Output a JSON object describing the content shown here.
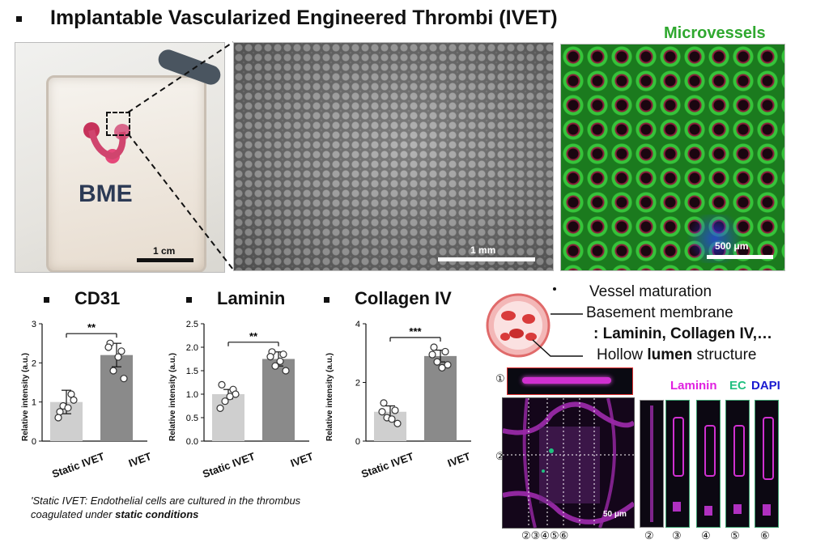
{
  "header": {
    "title": "Implantable Vascularized Engineered Thrombi (IVET)"
  },
  "photo_panel": {
    "logo_text": "BME",
    "scale_label": "1 cm"
  },
  "brightfield_panel": {
    "scale_label": "1 mm"
  },
  "fluor_panel": {
    "title": "Microvessels",
    "scale_label": "500 μm",
    "title_color": "#2fa82f"
  },
  "charts": [
    {
      "heading": "CD31",
      "ylabel": "Relative intensity (a.u.)",
      "sig": "**"
    },
    {
      "heading": "Laminin",
      "ylabel": "Relative intensity (a.u.)",
      "sig": "**"
    },
    {
      "heading": "Collagen IV",
      "ylabel": "Relative intensity (a.u.)",
      "sig": "***"
    }
  ],
  "chart_data": [
    {
      "type": "bar",
      "title": "CD31",
      "categories": [
        "Static IVET",
        "IVET"
      ],
      "values": [
        1.0,
        2.2
      ],
      "errors": [
        0.3,
        0.3
      ],
      "ylabel": "Relative intensity (a.u.)",
      "ylim": [
        0,
        3
      ],
      "yticks": [
        "0",
        "1",
        "2",
        "3"
      ],
      "significance": "**",
      "points": [
        [
          0.75,
          1.2,
          0.9,
          1.05,
          0.6,
          0.85
        ],
        [
          2.5,
          2.3,
          1.8,
          1.6,
          2.4,
          2.15
        ]
      ]
    },
    {
      "type": "bar",
      "title": "Laminin",
      "categories": [
        "Static IVET",
        "IVET"
      ],
      "values": [
        1.0,
        1.75
      ],
      "errors": [
        0.1,
        0.15
      ],
      "ylabel": "Relative intensity (a.u.)",
      "ylim": [
        0,
        2.5
      ],
      "yticks": [
        "0.0",
        "0.5",
        "1.0",
        "1.5",
        "2.0",
        "2.5"
      ],
      "significance": "**",
      "points": [
        [
          1.2,
          1.1,
          0.85,
          1.0,
          0.7,
          0.95
        ],
        [
          1.9,
          1.85,
          1.6,
          1.5,
          1.8,
          1.7
        ]
      ]
    },
    {
      "type": "bar",
      "title": "Collagen IV",
      "categories": [
        "Static IVET",
        "IVET"
      ],
      "values": [
        1.0,
        2.9
      ],
      "errors": [
        0.2,
        0.2
      ],
      "ylabel": "Relative intensity (a.u.)",
      "ylim": [
        0,
        4
      ],
      "yticks": [
        "0",
        "2",
        "4"
      ],
      "significance": "***",
      "points": [
        [
          1.3,
          1.05,
          0.8,
          0.6,
          1.0,
          0.75
        ],
        [
          3.2,
          3.05,
          2.7,
          2.6,
          2.95,
          2.5
        ]
      ]
    }
  ],
  "footnote": {
    "line1": "Static IVET: Endothelial cells are cultured in the thrombus",
    "line2_prefix": "coagulated under ",
    "line2_bold": "static conditions"
  },
  "maturation": {
    "line1": "Vessel maturation",
    "line2": "Basement membrane",
    "line3": ": Laminin, Collagen IV,…",
    "line4_a": "Hollow ",
    "line4_b": "lumen",
    "line4_c": " structure"
  },
  "confocal": {
    "legend_laminin": "Laminin",
    "legend_ec": "EC",
    "legend_dapi": "DAPI",
    "legend_colors": {
      "laminin": "#e020e0",
      "ec": "#20c080",
      "dapi": "#1a1ad0"
    },
    "scale_label": "50 μm",
    "markers": [
      "①",
      "②",
      "③",
      "④",
      "⑤",
      "⑥"
    ],
    "bottom_numbers": [
      "②③④⑤⑥",
      "②",
      "③",
      "④",
      "⑤",
      "⑥"
    ]
  }
}
